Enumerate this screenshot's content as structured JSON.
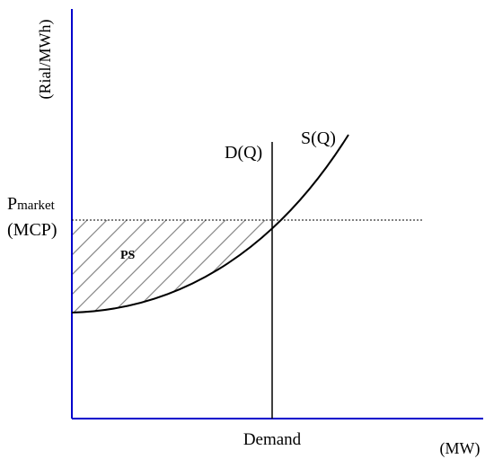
{
  "diagram": {
    "y_axis_label": "(Rial/MWh)",
    "x_axis_label": "(MW)",
    "price_label_main": "P",
    "price_label_sub": "market",
    "price_label_mcp": "(MCP)",
    "demand_curve_label": "D(Q)",
    "supply_curve_label": "S(Q)",
    "demand_tick_label": "Demand",
    "region_label": "PS",
    "colors": {
      "axis": "#0000cc",
      "curve": "#000000",
      "hatch": "#888888"
    }
  }
}
